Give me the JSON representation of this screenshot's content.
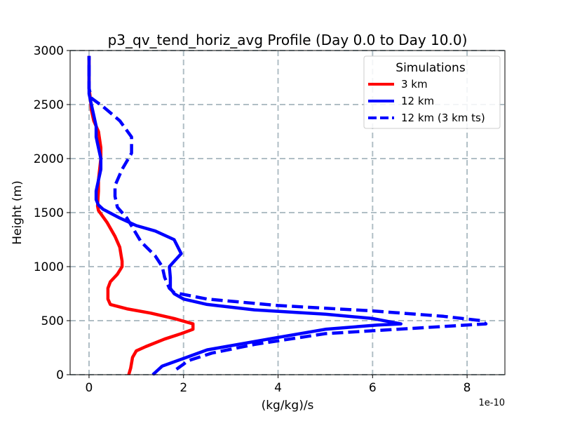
{
  "chart_data": {
    "type": "line",
    "title": "p3_qv_tend_horiz_avg Profile (Day 0.0 to Day 10.0)",
    "xlabel": "(kg/kg)/s",
    "ylabel": "Height (m)",
    "x_multiplier_label": "1e-10",
    "xlim": [
      -0.4,
      8.8
    ],
    "ylim": [
      0,
      3000
    ],
    "x_ticks": [
      0,
      2,
      4,
      6,
      8
    ],
    "x_tick_labels": [
      "0",
      "2",
      "4",
      "6",
      "8"
    ],
    "y_ticks": [
      0,
      500,
      1000,
      1500,
      2000,
      2500,
      3000
    ],
    "y_tick_labels": [
      "0",
      "500",
      "1000",
      "1500",
      "2000",
      "2500",
      "3000"
    ],
    "grid": true,
    "legend_title": "Simulations",
    "legend_position": "upper right",
    "series": [
      {
        "name": "3 km",
        "color": "#ff0000",
        "style": "solid",
        "points": [
          [
            0.84,
            0
          ],
          [
            0.88,
            60
          ],
          [
            0.92,
            160
          ],
          [
            1.0,
            220
          ],
          [
            1.2,
            260
          ],
          [
            1.6,
            330
          ],
          [
            1.95,
            380
          ],
          [
            2.2,
            420
          ],
          [
            2.2,
            470
          ],
          [
            1.8,
            520
          ],
          [
            1.3,
            570
          ],
          [
            0.8,
            610
          ],
          [
            0.45,
            650
          ],
          [
            0.4,
            700
          ],
          [
            0.4,
            800
          ],
          [
            0.45,
            860
          ],
          [
            0.6,
            930
          ],
          [
            0.7,
            1000
          ],
          [
            0.7,
            1050
          ],
          [
            0.68,
            1100
          ],
          [
            0.65,
            1180
          ],
          [
            0.55,
            1280
          ],
          [
            0.38,
            1410
          ],
          [
            0.2,
            1520
          ],
          [
            0.18,
            1560
          ],
          [
            0.2,
            1700
          ],
          [
            0.2,
            1800
          ],
          [
            0.25,
            2000
          ],
          [
            0.25,
            2100
          ],
          [
            0.2,
            2250
          ],
          [
            0.1,
            2350
          ],
          [
            0.05,
            2450
          ],
          [
            0.03,
            2550
          ],
          [
            0.0,
            2650
          ],
          [
            0.0,
            2750
          ],
          [
            0.0,
            2850
          ],
          [
            0.0,
            2950
          ]
        ]
      },
      {
        "name": "12 km",
        "color": "#0000ff",
        "style": "solid",
        "points": [
          [
            1.35,
            0
          ],
          [
            1.55,
            80
          ],
          [
            2.0,
            150
          ],
          [
            2.5,
            230
          ],
          [
            3.8,
            330
          ],
          [
            5.0,
            420
          ],
          [
            6.1,
            460
          ],
          [
            6.6,
            470
          ],
          [
            6.0,
            520
          ],
          [
            5.0,
            560
          ],
          [
            3.5,
            600
          ],
          [
            2.5,
            650
          ],
          [
            2.0,
            700
          ],
          [
            1.8,
            750
          ],
          [
            1.72,
            800
          ],
          [
            1.72,
            900
          ],
          [
            1.7,
            1000
          ],
          [
            1.95,
            1120
          ],
          [
            1.8,
            1250
          ],
          [
            1.4,
            1330
          ],
          [
            1.0,
            1380
          ],
          [
            0.65,
            1450
          ],
          [
            0.3,
            1530
          ],
          [
            0.2,
            1570
          ],
          [
            0.15,
            1620
          ],
          [
            0.15,
            1700
          ],
          [
            0.2,
            1800
          ],
          [
            0.25,
            1900
          ],
          [
            0.25,
            2000
          ],
          [
            0.2,
            2100
          ],
          [
            0.15,
            2200
          ],
          [
            0.15,
            2300
          ],
          [
            0.1,
            2400
          ],
          [
            0.05,
            2500
          ],
          [
            0.0,
            2600
          ],
          [
            0.0,
            2750
          ],
          [
            0.0,
            2950
          ]
        ]
      },
      {
        "name": "12 km (3 km ts)",
        "color": "#0000ff",
        "style": "dashed",
        "points": [
          [
            1.85,
            50
          ],
          [
            2.1,
            130
          ],
          [
            2.6,
            200
          ],
          [
            3.5,
            280
          ],
          [
            5.0,
            380
          ],
          [
            8.4,
            470
          ],
          [
            8.3,
            500
          ],
          [
            7.5,
            540
          ],
          [
            6.0,
            590
          ],
          [
            4.0,
            640
          ],
          [
            2.5,
            700
          ],
          [
            1.8,
            760
          ],
          [
            1.7,
            800
          ],
          [
            1.6,
            900
          ],
          [
            1.55,
            1000
          ],
          [
            1.4,
            1100
          ],
          [
            1.1,
            1230
          ],
          [
            0.8,
            1450
          ],
          [
            0.6,
            1550
          ],
          [
            0.55,
            1650
          ],
          [
            0.55,
            1750
          ],
          [
            0.7,
            1900
          ],
          [
            0.9,
            2050
          ],
          [
            0.9,
            2200
          ],
          [
            0.65,
            2350
          ],
          [
            0.3,
            2480
          ],
          [
            0.05,
            2560
          ],
          [
            0.0,
            2650
          ],
          [
            0.0,
            2800
          ],
          [
            0.0,
            2950
          ]
        ]
      }
    ]
  }
}
